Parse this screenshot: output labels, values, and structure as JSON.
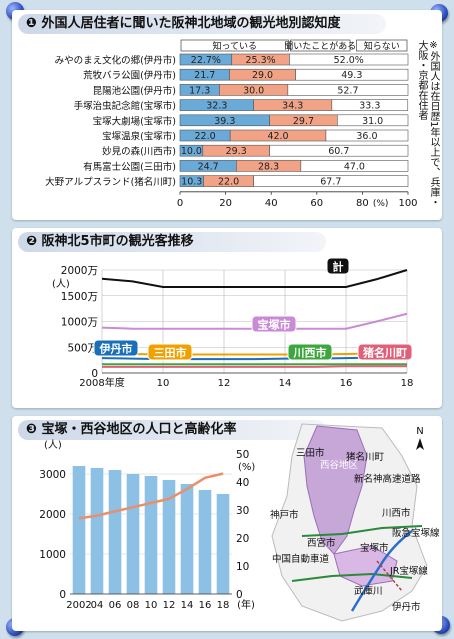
{
  "panel1": {
    "title": "❶ 外国人居住者に聞いた阪神北地域の観光地別認知度",
    "note": "※外国人は在日歴1年以上で、兵庫・大阪・京都在住者",
    "chart_data": {
      "type": "bar",
      "stacked": true,
      "orientation": "horizontal",
      "categories": [
        "みやのまえ文化の郷(伊丹市)",
        "荒牧バラ公園(伊丹市)",
        "昆陽池公園(伊丹市)",
        "手塚治虫記念館(宝塚市)",
        "宝塚大劇場(宝塚市)",
        "宝塚温泉(宝塚市)",
        "妙見の森(川西市)",
        "有馬富士公園(三田市)",
        "大野アルプスランド(猪名川町)"
      ],
      "series": [
        {
          "name": "知っている",
          "color": "#6aaad8",
          "values": [
            22.7,
            21.7,
            17.3,
            32.3,
            39.3,
            22.0,
            10.0,
            24.7,
            10.3
          ],
          "labels": [
            "22.7%",
            "21.7",
            "17.3",
            "32.3",
            "39.3",
            "22.0",
            "10.0",
            "24.7",
            "10.3"
          ]
        },
        {
          "name": "聞いたことがある",
          "color": "#f2a386",
          "values": [
            25.3,
            29.0,
            30.0,
            34.3,
            29.7,
            42.0,
            29.3,
            28.3,
            22.0
          ],
          "labels": [
            "25.3%",
            "29.0",
            "30.0",
            "34.3",
            "29.7",
            "42.0",
            "29.3",
            "28.3",
            "22.0"
          ]
        },
        {
          "name": "知らない",
          "color": "#ffffff",
          "values": [
            52.0,
            49.3,
            52.7,
            33.3,
            31.0,
            36.0,
            60.7,
            47.0,
            67.7
          ],
          "labels": [
            "52.0%",
            "49.3",
            "52.7",
            "33.3",
            "31.0",
            "36.0",
            "60.7",
            "47.0",
            "67.7"
          ]
        }
      ],
      "xlim": [
        0,
        100
      ],
      "xticks": [
        "0",
        "20",
        "40",
        "60",
        "80",
        "100"
      ],
      "xunit": "(%)"
    }
  },
  "panel2": {
    "title": "❷ 阪神北5市町の観光客推移",
    "chart_data": {
      "type": "line",
      "x": [
        2008,
        2009,
        2010,
        2011,
        2012,
        2013,
        2014,
        2015,
        2016,
        2017,
        2018
      ],
      "xticks": [
        "2008年度",
        "10",
        "12",
        "14",
        "16",
        "18"
      ],
      "xtick_values": [
        2008,
        2010,
        2012,
        2014,
        2016,
        2018
      ],
      "yticks": [
        "0",
        "500万",
        "1000万",
        "1500万",
        "2000万"
      ],
      "ytick_values": [
        0,
        500,
        1000,
        1500,
        2000
      ],
      "yunit": "(人)",
      "ylim": [
        0,
        2000
      ],
      "series": [
        {
          "name": "計",
          "color": "#111111",
          "values": [
            1830,
            1780,
            1670,
            1670,
            1670,
            1670,
            1670,
            1670,
            1670,
            1820,
            2000
          ]
        },
        {
          "name": "宝塚市",
          "color": "#c98bd6",
          "values": [
            880,
            860,
            860,
            860,
            860,
            860,
            860,
            860,
            860,
            1000,
            1150
          ]
        },
        {
          "name": "伊丹市",
          "color": "#1a6fb8",
          "values": [
            290,
            280,
            270,
            270,
            270,
            270,
            280,
            280,
            290,
            300,
            310
          ]
        },
        {
          "name": "三田市",
          "color": "#f0a000",
          "values": [
            380,
            370,
            360,
            360,
            360,
            360,
            360,
            360,
            370,
            380,
            380
          ]
        },
        {
          "name": "川西市",
          "color": "#3ca73c",
          "values": [
            170,
            170,
            170,
            170,
            170,
            170,
            170,
            170,
            170,
            170,
            170
          ]
        },
        {
          "name": "猪名川町",
          "color": "#e0607a",
          "values": [
            120,
            120,
            120,
            120,
            120,
            120,
            120,
            120,
            130,
            130,
            130
          ]
        }
      ]
    }
  },
  "panel3": {
    "title": "❸ 宝塚・西谷地区の人口と高齢化率",
    "chart_data": {
      "type": "bar",
      "categories": [
        "2002",
        "04",
        "06",
        "08",
        "10",
        "12",
        "14",
        "16",
        "18"
      ],
      "xunit": "(年)",
      "series": [
        {
          "name": "人口",
          "axis": "left",
          "values": [
            3200,
            3150,
            3100,
            3000,
            2950,
            2850,
            2750,
            2600,
            2500
          ]
        },
        {
          "name": "高齢化率",
          "axis": "right",
          "type": "line",
          "values": [
            27,
            28,
            29.5,
            31,
            32.5,
            34,
            37.5,
            41.5,
            43
          ]
        }
      ],
      "ylim_left": [
        0,
        3500
      ],
      "yticks_left": [
        "0",
        "1000",
        "2000",
        "3000"
      ],
      "yunit_left": "(人)",
      "ylim_right": [
        0,
        50
      ],
      "yticks_right": [
        "0",
        "10",
        "20",
        "30",
        "40",
        "50"
      ],
      "yunit_right": "(%)"
    },
    "map": {
      "north": "N",
      "labels": [
        "三田市",
        "猪名川町",
        "西谷地区",
        "新名神高速道路",
        "神戸市",
        "川西市",
        "阪急宝塚線",
        "西宮市",
        "宝塚市",
        "中国自動車道",
        "JR宝塚線",
        "武庫川",
        "伊丹市"
      ]
    }
  }
}
